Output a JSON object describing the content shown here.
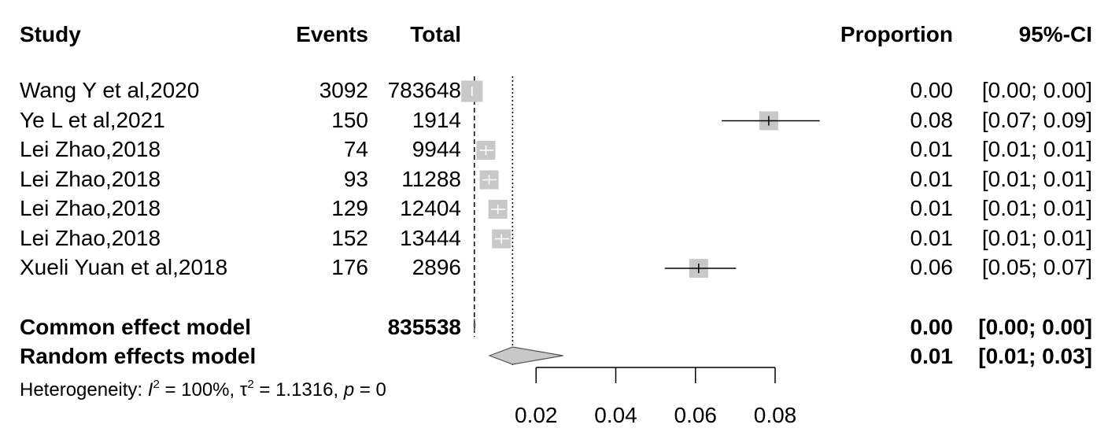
{
  "headers": {
    "study": "Study",
    "events": "Events",
    "total": "Total",
    "proportion": "Proportion",
    "ci": "95%-CI"
  },
  "studies": [
    {
      "study": "Wang Y et al,2020",
      "events": "3092",
      "total": "783648",
      "proportion": "0.00",
      "ci": "[0.00; 0.00]"
    },
    {
      "study": "Ye L et al,2021",
      "events": "150",
      "total": "1914",
      "proportion": "0.08",
      "ci": "[0.07; 0.09]"
    },
    {
      "study": "Lei Zhao,2018",
      "events": "74",
      "total": "9944",
      "proportion": "0.01",
      "ci": "[0.01; 0.01]"
    },
    {
      "study": "Lei Zhao,2018",
      "events": "93",
      "total": "11288",
      "proportion": "0.01",
      "ci": "[0.01; 0.01]"
    },
    {
      "study": "Lei Zhao,2018",
      "events": "129",
      "total": "12404",
      "proportion": "0.01",
      "ci": "[0.01; 0.01]"
    },
    {
      "study": "Lei Zhao,2018",
      "events": "152",
      "total": "13444",
      "proportion": "0.01",
      "ci": "[0.01; 0.01]"
    },
    {
      "study": "Xueli Yuan et al,2018",
      "events": "176",
      "total": "2896",
      "proportion": "0.06",
      "ci": "[0.05; 0.07]"
    }
  ],
  "common": {
    "label": "Common effect model",
    "total": "835538",
    "proportion": "0.00",
    "ci": "[0.00; 0.00]"
  },
  "random": {
    "label": "Random effects model",
    "proportion": "0.01",
    "ci": "[0.01; 0.03]"
  },
  "heterogeneity": {
    "label": "Heterogeneity:",
    "i2": "100%",
    "tau2": "1.1316",
    "p": "0"
  },
  "chart_data": {
    "type": "forest",
    "xlim": [
      0,
      0.08
    ],
    "x_ticks": [
      0.02,
      0.04,
      0.06,
      0.08
    ],
    "x_tick_labels": [
      "0.02",
      "0.04",
      "0.06",
      "0.08"
    ],
    "studies": [
      {
        "estimate": 0.0039,
        "lower": 0.0038,
        "upper": 0.0041,
        "weight": 93.8
      },
      {
        "estimate": 0.0784,
        "lower": 0.0666,
        "upper": 0.0912,
        "weight": 0.2
      },
      {
        "estimate": 0.0074,
        "lower": 0.0058,
        "upper": 0.0093,
        "weight": 1.2
      },
      {
        "estimate": 0.0082,
        "lower": 0.0066,
        "upper": 0.0101,
        "weight": 1.4
      },
      {
        "estimate": 0.0104,
        "lower": 0.0087,
        "upper": 0.0123,
        "weight": 1.5
      },
      {
        "estimate": 0.0113,
        "lower": 0.0096,
        "upper": 0.0132,
        "weight": 1.6
      },
      {
        "estimate": 0.0608,
        "lower": 0.0523,
        "upper": 0.0702,
        "weight": 0.3
      }
    ],
    "common_effect": {
      "estimate": 0.0045,
      "lower": 0.0044,
      "upper": 0.0047
    },
    "random_effects": {
      "estimate": 0.0141,
      "lower": 0.0083,
      "upper": 0.0268
    },
    "common_effect_line": 0.0045,
    "random_effects_line": 0.0141
  }
}
